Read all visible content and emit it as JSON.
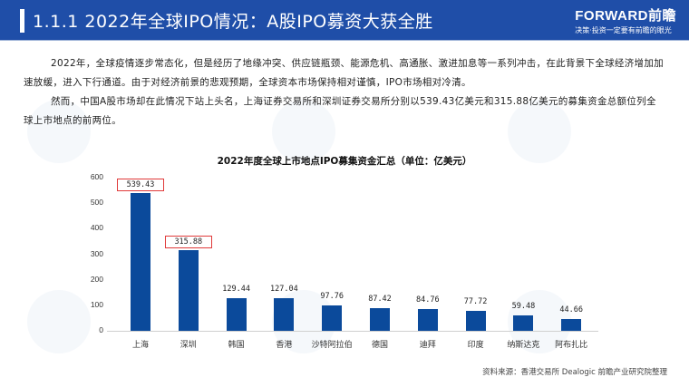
{
  "header": {
    "title": "1.1.1 2022年全球IPO情况：A股IPO募资大获全胜",
    "logo_brand": "FORWARD前瞻",
    "logo_slogan": "决策·投资一定要有前瞻的眼光",
    "bg_color": "#1f4ea8"
  },
  "body": {
    "paragraph1": "2022年，全球疫情逐步常态化，但是经历了地缘冲突、供应链瓶颈、能源危机、高通胀、激进加息等一系列冲击，在此背景下全球经济增加加速放缓，进入下行通道。由于对经济前景的悲观预期，全球资本市场保持相对谨慎，IPO市场相对冷清。",
    "paragraph2": "然而，中国A股市场却在此情况下站上头名，上海证券交易所和深圳证券交易所分别以539.43亿美元和315.88亿美元的募集资金总额位列全球上市地点的前两位。"
  },
  "chart": {
    "title": "2022年度全球上市地点IPO募集资金汇总（单位：亿美元）",
    "yticks": [
      "600",
      "500",
      "400",
      "300",
      "200",
      "100",
      "0"
    ],
    "categories": [
      "上海",
      "深圳",
      "韩国",
      "香港",
      "沙特阿拉伯",
      "德国",
      "迪拜",
      "印度",
      "纳斯达克",
      "阿布扎比"
    ],
    "value_labels": [
      "539.43",
      "315.88",
      "129.44",
      "127.04",
      "97.76",
      "87.42",
      "84.76",
      "77.72",
      "59.48",
      "44.66"
    ],
    "bar_color": "#0b4a9b",
    "highlight_color": "#e03a3a"
  },
  "source": "资料来源：香港交易所 Dealogic 前瞻产业研究院整理",
  "chart_data": {
    "type": "bar",
    "title": "2022年度全球上市地点IPO募集资金汇总（单位：亿美元）",
    "categories": [
      "上海",
      "深圳",
      "韩国",
      "香港",
      "沙特阿拉伯",
      "德国",
      "迪拜",
      "印度",
      "纳斯达克",
      "阿布扎比"
    ],
    "values": [
      539.43,
      315.88,
      129.44,
      127.04,
      97.76,
      87.42,
      84.76,
      77.72,
      59.48,
      44.66
    ],
    "xlabel": "",
    "ylabel": "亿美元",
    "ylim": [
      0,
      600
    ],
    "yticks": [
      0,
      100,
      200,
      300,
      400,
      500,
      600
    ],
    "grid": false,
    "legend": null,
    "annotations": [
      "539.43 and 315.88 labels highlighted with red boxes"
    ]
  }
}
